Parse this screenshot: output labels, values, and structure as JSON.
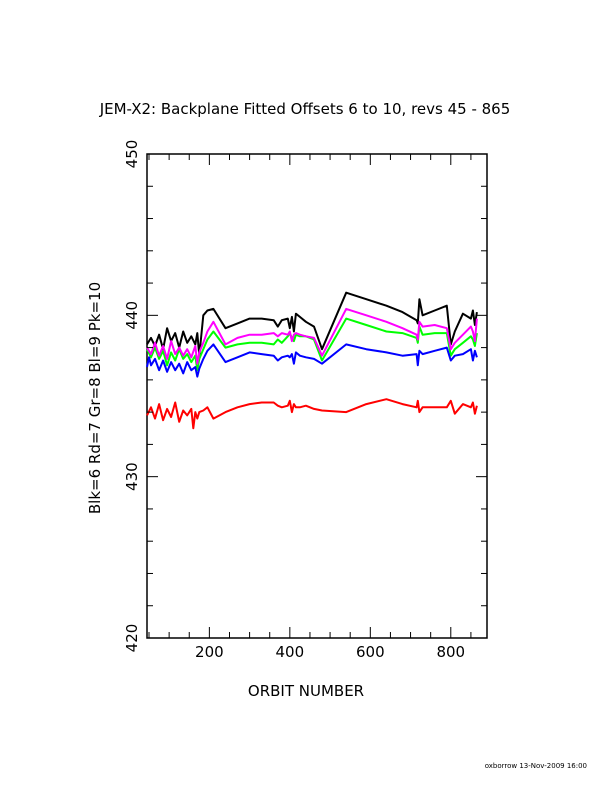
{
  "chart_data": {
    "type": "line",
    "title": "JEM-X2: Backplane Fitted Offsets 6 to 10, revs 45 - 865",
    "xlabel": "ORBIT NUMBER",
    "ylabel": "Blk=6 Rd=7 Gr=8 Bl=9 Pk=10",
    "xlim": [
      45,
      890
    ],
    "ylim": [
      420,
      450
    ],
    "x_ticks": [
      200,
      400,
      600,
      800
    ],
    "y_ticks": [
      420,
      430,
      440,
      450
    ],
    "grid": false,
    "series": [
      {
        "name": "Blk=6",
        "color": "#000000",
        "x": [
          45,
          55,
          65,
          75,
          85,
          95,
          105,
          115,
          125,
          135,
          145,
          155,
          165,
          170,
          175,
          185,
          195,
          210,
          240,
          270,
          300,
          330,
          360,
          370,
          380,
          395,
          400,
          405,
          410,
          415,
          425,
          440,
          460,
          480,
          540,
          590,
          640,
          680,
          715,
          718,
          722,
          730,
          760,
          790,
          800,
          810,
          830,
          850,
          855,
          860,
          865
        ],
        "y": [
          438.2,
          438.6,
          438.1,
          438.8,
          437.9,
          439.2,
          438.4,
          438.9,
          438.0,
          439.0,
          438.3,
          438.7,
          438.2,
          438.9,
          437.5,
          440.0,
          440.3,
          440.4,
          439.2,
          439.5,
          439.8,
          439.8,
          439.7,
          439.3,
          439.7,
          439.8,
          439.2,
          439.9,
          439.0,
          440.1,
          439.9,
          439.6,
          439.3,
          437.9,
          441.4,
          441.0,
          440.6,
          440.2,
          439.7,
          439.5,
          441.0,
          440.0,
          440.3,
          440.6,
          438.2,
          439.0,
          440.1,
          439.8,
          440.3,
          439.4,
          440.2
        ]
      },
      {
        "name": "Rd=7",
        "color": "#ff0000",
        "x": [
          45,
          55,
          65,
          75,
          85,
          95,
          105,
          115,
          125,
          135,
          145,
          155,
          160,
          165,
          170,
          175,
          185,
          195,
          210,
          240,
          270,
          300,
          330,
          360,
          370,
          380,
          395,
          400,
          405,
          410,
          415,
          425,
          440,
          460,
          480,
          540,
          590,
          640,
          680,
          715,
          718,
          722,
          730,
          760,
          790,
          800,
          810,
          830,
          850,
          855,
          860,
          865
        ],
        "y": [
          433.8,
          434.3,
          433.6,
          434.5,
          433.5,
          434.2,
          433.7,
          434.6,
          433.4,
          434.1,
          433.8,
          434.2,
          433.0,
          434.0,
          433.6,
          434.0,
          434.1,
          434.3,
          433.6,
          434.0,
          434.3,
          434.5,
          434.6,
          434.6,
          434.4,
          434.3,
          434.4,
          434.7,
          434.0,
          434.5,
          434.3,
          434.3,
          434.4,
          434.2,
          434.1,
          434.0,
          434.5,
          434.8,
          434.5,
          434.3,
          434.7,
          434.0,
          434.3,
          434.3,
          434.3,
          434.7,
          433.9,
          434.5,
          434.3,
          434.6,
          433.9,
          434.4
        ]
      },
      {
        "name": "Gr=8",
        "color": "#00ff00",
        "x": [
          45,
          55,
          65,
          75,
          85,
          95,
          105,
          115,
          125,
          135,
          145,
          155,
          165,
          170,
          175,
          185,
          195,
          210,
          240,
          270,
          300,
          330,
          360,
          370,
          380,
          395,
          400,
          405,
          410,
          415,
          425,
          440,
          460,
          480,
          540,
          590,
          640,
          680,
          715,
          718,
          722,
          730,
          760,
          790,
          800,
          810,
          830,
          850,
          855,
          860,
          865
        ],
        "y": [
          437.9,
          437.4,
          438.0,
          437.3,
          437.8,
          436.9,
          437.7,
          437.2,
          437.9,
          437.3,
          437.6,
          437.1,
          437.5,
          436.6,
          437.3,
          437.9,
          438.5,
          439.0,
          438.0,
          438.2,
          438.3,
          438.3,
          438.2,
          438.5,
          438.3,
          438.7,
          438.9,
          438.6,
          438.4,
          438.8,
          438.7,
          438.7,
          438.5,
          437.2,
          439.8,
          439.4,
          439.0,
          438.9,
          438.6,
          438.3,
          439.3,
          438.8,
          438.9,
          438.9,
          437.5,
          437.9,
          438.3,
          438.7,
          438.5,
          438.1,
          438.9
        ]
      },
      {
        "name": "Bl=9",
        "color": "#0000ff",
        "x": [
          45,
          50,
          55,
          65,
          75,
          85,
          95,
          105,
          115,
          125,
          135,
          145,
          155,
          165,
          170,
          175,
          185,
          195,
          210,
          240,
          270,
          300,
          330,
          360,
          370,
          380,
          395,
          400,
          405,
          410,
          415,
          425,
          440,
          460,
          480,
          540,
          590,
          640,
          680,
          715,
          718,
          722,
          730,
          760,
          790,
          800,
          810,
          830,
          850,
          855,
          860,
          865
        ],
        "y": [
          436.8,
          437.4,
          436.9,
          437.3,
          436.6,
          437.2,
          436.5,
          437.1,
          436.6,
          437.0,
          436.4,
          437.1,
          436.6,
          436.8,
          436.2,
          436.7,
          437.3,
          437.8,
          438.2,
          437.1,
          437.4,
          437.7,
          437.6,
          437.5,
          437.2,
          437.4,
          437.5,
          437.4,
          437.6,
          437.0,
          437.7,
          437.5,
          437.4,
          437.3,
          437.0,
          438.2,
          437.9,
          437.7,
          437.5,
          437.6,
          436.9,
          437.8,
          437.6,
          437.8,
          438.0,
          437.2,
          437.5,
          437.6,
          437.9,
          437.2,
          437.8,
          437.4
        ]
      },
      {
        "name": "Pk=10",
        "color": "#ff00ff",
        "x": [
          45,
          55,
          65,
          75,
          85,
          95,
          105,
          115,
          125,
          135,
          145,
          155,
          165,
          170,
          175,
          185,
          195,
          210,
          240,
          270,
          300,
          330,
          360,
          370,
          380,
          395,
          400,
          405,
          410,
          415,
          425,
          440,
          460,
          480,
          540,
          590,
          640,
          680,
          715,
          718,
          722,
          730,
          760,
          790,
          800,
          810,
          830,
          850,
          855,
          860,
          865
        ],
        "y": [
          438.0,
          437.6,
          438.3,
          437.5,
          438.1,
          437.3,
          438.4,
          437.6,
          438.0,
          437.5,
          437.9,
          437.4,
          438.1,
          437.0,
          437.7,
          438.3,
          439.0,
          439.6,
          438.2,
          438.6,
          438.8,
          438.8,
          438.9,
          438.7,
          438.9,
          438.8,
          439.0,
          438.4,
          438.8,
          438.9,
          438.8,
          438.7,
          438.6,
          437.5,
          440.4,
          440.0,
          439.6,
          439.2,
          438.8,
          438.5,
          439.6,
          439.3,
          439.4,
          439.2,
          437.9,
          438.3,
          438.8,
          439.3,
          439.0,
          438.4,
          439.8
        ]
      }
    ]
  },
  "footer": "oxborrow 13-Nov-2009 16:00"
}
